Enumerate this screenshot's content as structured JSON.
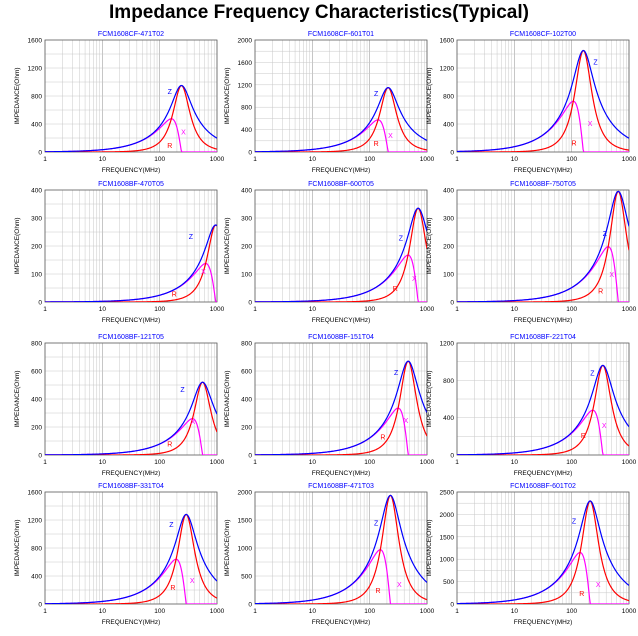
{
  "page": {
    "title": "Impedance Frequency Characteristics(Typical)"
  },
  "colors": {
    "Z": "#0000ff",
    "R": "#ff0000",
    "X": "#ff00ff",
    "grid": "#c8c8c8",
    "axis": "#000000",
    "chart_title": "#0000ff"
  },
  "chart_data": [
    {
      "type": "line",
      "title": "FCM1608CF-471T02",
      "xlabel": "FREQUENCY(MHz)",
      "ylabel": "IMPEDANCE(Ohm)",
      "xscale": "log",
      "xlim": [
        1,
        1000
      ],
      "ylim": [
        0,
        1600
      ],
      "yticks": [
        0,
        400,
        800,
        1200,
        1600
      ],
      "xticks": [
        1,
        10,
        100,
        1000
      ],
      "grid": true,
      "peak_frequency_mhz": 240,
      "peak_impedance": 950,
      "curve_labels": [
        {
          "text": "Z",
          "x": 150,
          "y": 830
        },
        {
          "text": "R",
          "x": 150,
          "y": 60
        },
        {
          "text": "X",
          "x": 260,
          "y": 250
        }
      ],
      "series": [
        {
          "name": "Z",
          "color": "#0000ff"
        },
        {
          "name": "R",
          "color": "#ff0000"
        },
        {
          "name": "X",
          "color": "#ff00ff"
        }
      ]
    },
    {
      "type": "line",
      "title": "FCM1608CF-601T01",
      "xlabel": "FREQUENCY(MHz)",
      "ylabel": "IMPEDANCE(Ohm)",
      "xscale": "log",
      "xlim": [
        1,
        1000
      ],
      "ylim": [
        0,
        2000
      ],
      "yticks": [
        0,
        400,
        800,
        1200,
        1600,
        2000
      ],
      "xticks": [
        1,
        10,
        100,
        1000
      ],
      "grid": true,
      "peak_frequency_mhz": 210,
      "peak_impedance": 1150,
      "curve_labels": [
        {
          "text": "Z",
          "x": 130,
          "y": 1000
        },
        {
          "text": "R",
          "x": 130,
          "y": 110
        },
        {
          "text": "X",
          "x": 230,
          "y": 250
        }
      ],
      "series": [
        {
          "name": "Z",
          "color": "#0000ff"
        },
        {
          "name": "R",
          "color": "#ff0000"
        },
        {
          "name": "X",
          "color": "#ff00ff"
        }
      ]
    },
    {
      "type": "line",
      "title": "FCM1608CF-102T00",
      "xlabel": "FREQUENCY(MHz)",
      "ylabel": "IMPEDANCE(Ohm)",
      "xscale": "log",
      "xlim": [
        1,
        1000
      ],
      "ylim": [
        0,
        1600
      ],
      "yticks": [
        0,
        400,
        800,
        1200,
        1600
      ],
      "xticks": [
        1,
        10,
        100,
        1000
      ],
      "grid": true,
      "peak_frequency_mhz": 160,
      "peak_impedance": 1450,
      "curve_labels": [
        {
          "text": "Z",
          "x": 260,
          "y": 1250
        },
        {
          "text": "R",
          "x": 110,
          "y": 90
        },
        {
          "text": "X",
          "x": 210,
          "y": 370
        }
      ],
      "series": [
        {
          "name": "Z",
          "color": "#0000ff"
        },
        {
          "name": "R",
          "color": "#ff0000"
        },
        {
          "name": "X",
          "color": "#ff00ff"
        }
      ]
    },
    {
      "type": "line",
      "title": "FCM1608BF-470T05",
      "xlabel": "FREQUENCY(MHz)",
      "ylabel": "IMPEDANCE(Ohm)",
      "xscale": "log",
      "xlim": [
        1,
        1000
      ],
      "ylim": [
        0,
        400
      ],
      "yticks": [
        0,
        100,
        200,
        300,
        400
      ],
      "xticks": [
        1,
        10,
        100,
        1000
      ],
      "grid": true,
      "peak_frequency_mhz": 950,
      "peak_impedance": 275,
      "curve_labels": [
        {
          "text": "Z",
          "x": 350,
          "y": 225
        },
        {
          "text": "R",
          "x": 180,
          "y": 20
        },
        {
          "text": "X",
          "x": 580,
          "y": 100
        }
      ],
      "series": [
        {
          "name": "Z",
          "color": "#0000ff"
        },
        {
          "name": "R",
          "color": "#ff0000"
        },
        {
          "name": "X",
          "color": "#ff00ff"
        }
      ]
    },
    {
      "type": "line",
      "title": "FCM1608BF-600T05",
      "xlabel": "FREQUENCY(MHz)",
      "ylabel": "IMPEDANCE(Ohm)",
      "xscale": "log",
      "xlim": [
        1,
        1000
      ],
      "ylim": [
        0,
        400
      ],
      "yticks": [
        0,
        100,
        200,
        300,
        400
      ],
      "xticks": [
        1,
        10,
        100,
        1000
      ],
      "grid": true,
      "peak_frequency_mhz": 700,
      "peak_impedance": 335,
      "curve_labels": [
        {
          "text": "Z",
          "x": 350,
          "y": 220
        },
        {
          "text": "R",
          "x": 280,
          "y": 40
        },
        {
          "text": "X",
          "x": 600,
          "y": 75
        }
      ],
      "series": [
        {
          "name": "Z",
          "color": "#0000ff"
        },
        {
          "name": "R",
          "color": "#ff0000"
        },
        {
          "name": "X",
          "color": "#ff00ff"
        }
      ]
    },
    {
      "type": "line",
      "title": "FCM1608BF-750T05",
      "xlabel": "FREQUENCY(MHz)",
      "ylabel": "IMPEDANCE(Ohm)",
      "xscale": "log",
      "xlim": [
        1,
        1000
      ],
      "ylim": [
        0,
        400
      ],
      "yticks": [
        0,
        100,
        200,
        300,
        400
      ],
      "xticks": [
        1,
        10,
        100,
        1000
      ],
      "grid": true,
      "peak_frequency_mhz": 650,
      "peak_impedance": 395,
      "curve_labels": [
        {
          "text": "Z",
          "x": 380,
          "y": 235
        },
        {
          "text": "R",
          "x": 320,
          "y": 30
        },
        {
          "text": "X",
          "x": 500,
          "y": 90
        }
      ],
      "series": [
        {
          "name": "Z",
          "color": "#0000ff"
        },
        {
          "name": "R",
          "color": "#ff0000"
        },
        {
          "name": "X",
          "color": "#ff00ff"
        }
      ]
    },
    {
      "type": "line",
      "title": "FCM1608BF-121T05",
      "xlabel": "FREQUENCY(MHz)",
      "ylabel": "IMPEDANCE(Ohm)",
      "xscale": "log",
      "xlim": [
        1,
        1000
      ],
      "ylim": [
        0,
        800
      ],
      "yticks": [
        0,
        200,
        400,
        600,
        800
      ],
      "xticks": [
        1,
        10,
        100,
        1000
      ],
      "grid": true,
      "peak_frequency_mhz": 560,
      "peak_impedance": 520,
      "curve_labels": [
        {
          "text": "Z",
          "x": 250,
          "y": 450
        },
        {
          "text": "R",
          "x": 150,
          "y": 60
        },
        {
          "text": "X",
          "x": 380,
          "y": 220
        }
      ],
      "series": [
        {
          "name": "Z",
          "color": "#0000ff"
        },
        {
          "name": "R",
          "color": "#ff0000"
        },
        {
          "name": "X",
          "color": "#ff00ff"
        }
      ]
    },
    {
      "type": "line",
      "title": "FCM1608BF-151T04",
      "xlabel": "FREQUENCY(MHz)",
      "ylabel": "IMPEDANCE(Ohm)",
      "xscale": "log",
      "xlim": [
        1,
        1000
      ],
      "ylim": [
        0,
        800
      ],
      "yticks": [
        0,
        200,
        400,
        600,
        800
      ],
      "xticks": [
        1,
        10,
        100,
        1000
      ],
      "grid": true,
      "peak_frequency_mhz": 470,
      "peak_impedance": 670,
      "curve_labels": [
        {
          "text": "Z",
          "x": 290,
          "y": 570
        },
        {
          "text": "R",
          "x": 170,
          "y": 110
        },
        {
          "text": "X",
          "x": 430,
          "y": 230
        }
      ],
      "series": [
        {
          "name": "Z",
          "color": "#0000ff"
        },
        {
          "name": "R",
          "color": "#ff0000"
        },
        {
          "name": "X",
          "color": "#ff00ff"
        }
      ]
    },
    {
      "type": "line",
      "title": "FCM1608BF-221T04",
      "xlabel": "FREQUENCY(MHz)",
      "ylabel": "IMPEDANCE(Ohm)",
      "xscale": "log",
      "xlim": [
        1,
        1000
      ],
      "ylim": [
        0,
        1200
      ],
      "yticks": [
        0,
        400,
        800,
        1200
      ],
      "xticks": [
        1,
        10,
        100,
        1000
      ],
      "grid": true,
      "peak_frequency_mhz": 350,
      "peak_impedance": 960,
      "curve_labels": [
        {
          "text": "Z",
          "x": 230,
          "y": 850
        },
        {
          "text": "R",
          "x": 160,
          "y": 180
        },
        {
          "text": "X",
          "x": 370,
          "y": 290
        }
      ],
      "series": [
        {
          "name": "Z",
          "color": "#0000ff"
        },
        {
          "name": "R",
          "color": "#ff0000"
        },
        {
          "name": "X",
          "color": "#ff00ff"
        }
      ]
    },
    {
      "type": "line",
      "title": "FCM1608BF-331T04",
      "xlabel": "FREQUENCY(MHz)",
      "ylabel": "IMPEDANCE(Ohm)",
      "xscale": "log",
      "xlim": [
        1,
        1000
      ],
      "ylim": [
        0,
        1600
      ],
      "yticks": [
        0,
        400,
        800,
        1200,
        1600
      ],
      "xticks": [
        1,
        10,
        100,
        1000
      ],
      "grid": true,
      "peak_frequency_mhz": 290,
      "peak_impedance": 1280,
      "curve_labels": [
        {
          "text": "Z",
          "x": 160,
          "y": 1100
        },
        {
          "text": "R",
          "x": 170,
          "y": 200
        },
        {
          "text": "X",
          "x": 370,
          "y": 300
        }
      ],
      "series": [
        {
          "name": "Z",
          "color": "#0000ff"
        },
        {
          "name": "R",
          "color": "#ff0000"
        },
        {
          "name": "X",
          "color": "#ff00ff"
        }
      ]
    },
    {
      "type": "line",
      "title": "FCM1608BF-471T03",
      "xlabel": "FREQUENCY(MHz)",
      "ylabel": "IMPEDANCE(Ohm)",
      "xscale": "log",
      "xlim": [
        1,
        1000
      ],
      "ylim": [
        0,
        2000
      ],
      "yticks": [
        0,
        500,
        1000,
        1500,
        2000
      ],
      "xticks": [
        1,
        10,
        100,
        1000
      ],
      "grid": true,
      "peak_frequency_mhz": 230,
      "peak_impedance": 1940,
      "curve_labels": [
        {
          "text": "Z",
          "x": 130,
          "y": 1400
        },
        {
          "text": "R",
          "x": 140,
          "y": 200
        },
        {
          "text": "X",
          "x": 330,
          "y": 300
        }
      ],
      "series": [
        {
          "name": "Z",
          "color": "#0000ff"
        },
        {
          "name": "R",
          "color": "#ff0000"
        },
        {
          "name": "X",
          "color": "#ff00ff"
        }
      ]
    },
    {
      "type": "line",
      "title": "FCM1608BF-601T02",
      "xlabel": "FREQUENCY(MHz)",
      "ylabel": "IMPEDANCE(Ohm)",
      "xscale": "log",
      "xlim": [
        1,
        1000
      ],
      "ylim": [
        0,
        2500
      ],
      "yticks": [
        0,
        500,
        1000,
        1500,
        2000,
        2500
      ],
      "xticks": [
        1,
        10,
        100,
        1000
      ],
      "grid": true,
      "peak_frequency_mhz": 210,
      "peak_impedance": 2300,
      "curve_labels": [
        {
          "text": "Z",
          "x": 110,
          "y": 1800
        },
        {
          "text": "R",
          "x": 150,
          "y": 180
        },
        {
          "text": "X",
          "x": 290,
          "y": 380
        }
      ],
      "series": [
        {
          "name": "Z",
          "color": "#0000ff"
        },
        {
          "name": "R",
          "color": "#ff0000"
        },
        {
          "name": "X",
          "color": "#ff00ff"
        }
      ]
    }
  ]
}
